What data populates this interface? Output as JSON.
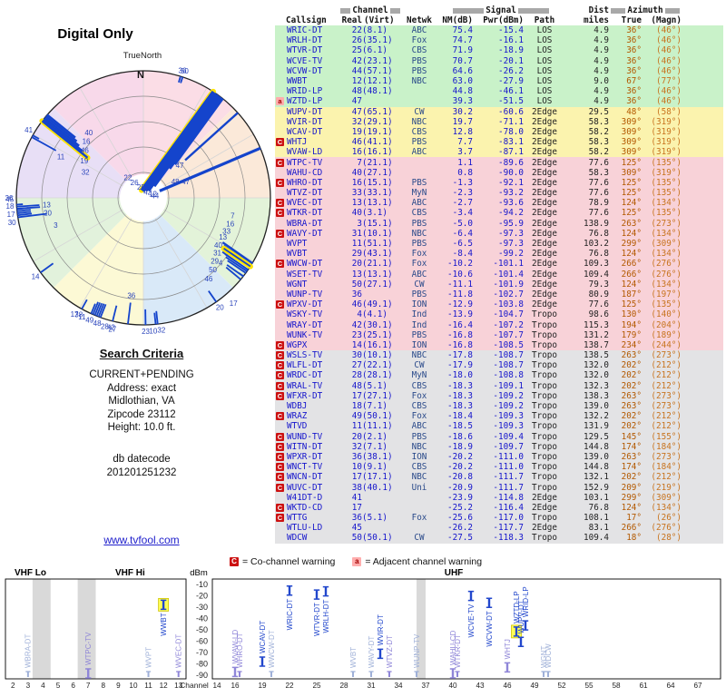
{
  "search": {
    "heading": "Search Criteria",
    "lines": [
      "CURRENT+PENDING",
      "Address: exact",
      "Midlothian, VA",
      "Zipcode 23112",
      "Height: 10.0 ft."
    ],
    "datecode_label": "db datecode",
    "datecode": "201201251232",
    "link": "www.tvfool.com"
  },
  "legend": {
    "c_symbol": "C",
    "c_label": "= Co-channel warning",
    "a_symbol": "a",
    "a_label": "= Adjacent channel warning"
  },
  "table": {
    "header": {
      "channel_group": "Channel",
      "signal_group": "Signal",
      "dist_line1": "Dist",
      "azimuth_group": "Azimuth",
      "callsign": "Callsign",
      "real": "Real",
      "virt": "(Virt)",
      "netwk": "Netwk",
      "nm": "NM(dB)",
      "pwr": "Pwr(dBm)",
      "path": "Path",
      "miles": "miles",
      "true": "True",
      "magn": "(Magn)"
    }
  },
  "chart_data": [
    {
      "type": "table",
      "columns": [
        "Callsign",
        "Real",
        "(Virt)",
        "Netwk",
        "NM(dB)",
        "Pwr(dBm)",
        "Path",
        "miles",
        "True",
        "(Magn)",
        "warning",
        "color_band"
      ],
      "rows": [
        [
          "WRIC-DT",
          "22",
          "(8.1)",
          "ABC",
          "75.4",
          "-15.4",
          "LOS",
          "4.9",
          "36°",
          "(46°)",
          "",
          "g"
        ],
        [
          "WRLH-DT",
          "26",
          "(35.1)",
          "Fox",
          "74.7",
          "-16.1",
          "LOS",
          "4.9",
          "36°",
          "(46°)",
          "",
          "g"
        ],
        [
          "WTVR-DT",
          "25",
          "(6.1)",
          "CBS",
          "71.9",
          "-18.9",
          "LOS",
          "4.9",
          "36°",
          "(46°)",
          "",
          "g"
        ],
        [
          "WCVE-TV",
          "42",
          "(23.1)",
          "PBS",
          "70.7",
          "-20.1",
          "LOS",
          "4.9",
          "36°",
          "(46°)",
          "",
          "g"
        ],
        [
          "WCVW-DT",
          "44",
          "(57.1)",
          "PBS",
          "64.6",
          "-26.2",
          "LOS",
          "4.9",
          "36°",
          "(46°)",
          "",
          "g"
        ],
        [
          "WWBT",
          "12",
          "(12.1)",
          "NBC",
          "63.0",
          "-27.9",
          "LOS",
          "9.0",
          "67°",
          "(77°)",
          "",
          "g"
        ],
        [
          "WRID-LP",
          "48",
          "(48.1)",
          "",
          "44.8",
          "-46.1",
          "LOS",
          "4.9",
          "36°",
          "(46°)",
          "",
          "g"
        ],
        [
          "WZTD-LP",
          "47",
          "",
          "",
          "39.3",
          "-51.5",
          "LOS",
          "4.9",
          "36°",
          "(46°)",
          "a",
          "g"
        ],
        [
          "WUPV-DT",
          "47",
          "(65.1)",
          "CW",
          "30.2",
          "-60.6",
          "2Edge",
          "29.5",
          "48°",
          "(58°)",
          "",
          "y"
        ],
        [
          "WVIR-DT",
          "32",
          "(29.1)",
          "NBC",
          "19.7",
          "-71.1",
          "2Edge",
          "58.3",
          "309°",
          "(319°)",
          "",
          "y"
        ],
        [
          "WCAV-DT",
          "19",
          "(19.1)",
          "CBS",
          "12.8",
          "-78.0",
          "2Edge",
          "58.2",
          "309°",
          "(319°)",
          "",
          "y"
        ],
        [
          "WHTJ",
          "46",
          "(41.1)",
          "PBS",
          "7.7",
          "-83.1",
          "2Edge",
          "58.3",
          "309°",
          "(319°)",
          "C",
          "y"
        ],
        [
          "WVAW-LD",
          "16",
          "(16.1)",
          "ABC",
          "3.7",
          "-87.1",
          "2Edge",
          "58.2",
          "309°",
          "(319°)",
          "",
          "y"
        ],
        [
          "WTPC-TV",
          "7",
          "(21.1)",
          "",
          "1.1",
          "-89.6",
          "2Edge",
          "77.6",
          "125°",
          "(135°)",
          "C",
          "p"
        ],
        [
          "WAHU-CD",
          "40",
          "(27.1)",
          "",
          "0.8",
          "-90.0",
          "2Edge",
          "58.3",
          "309°",
          "(319°)",
          "",
          "p"
        ],
        [
          "WHRO-DT",
          "16",
          "(15.1)",
          "PBS",
          "-1.3",
          "-92.1",
          "2Edge",
          "77.6",
          "125°",
          "(135°)",
          "C",
          "p"
        ],
        [
          "WTVZ-DT",
          "33",
          "(33.1)",
          "MyN",
          "-2.3",
          "-93.2",
          "2Edge",
          "77.6",
          "125°",
          "(135°)",
          "",
          "p"
        ],
        [
          "WVEC-DT",
          "13",
          "(13.1)",
          "ABC",
          "-2.7",
          "-93.6",
          "2Edge",
          "78.9",
          "124°",
          "(134°)",
          "C",
          "p"
        ],
        [
          "WTKR-DT",
          "40",
          "(3.1)",
          "CBS",
          "-3.4",
          "-94.2",
          "2Edge",
          "77.6",
          "125°",
          "(135°)",
          "C",
          "p"
        ],
        [
          "WBRA-DT",
          "3",
          "(15.1)",
          "PBS",
          "-5.0",
          "-95.9",
          "2Edge",
          "138.9",
          "263°",
          "(273°)",
          "",
          "p"
        ],
        [
          "WAVY-DT",
          "31",
          "(10.1)",
          "NBC",
          "-6.4",
          "-97.3",
          "2Edge",
          "76.8",
          "124°",
          "(134°)",
          "C",
          "p"
        ],
        [
          "WVPT",
          "11",
          "(51.1)",
          "PBS",
          "-6.5",
          "-97.3",
          "2Edge",
          "103.2",
          "299°",
          "(309°)",
          "",
          "p"
        ],
        [
          "WVBT",
          "29",
          "(43.1)",
          "Fox",
          "-8.4",
          "-99.2",
          "2Edge",
          "76.8",
          "124°",
          "(134°)",
          "",
          "p"
        ],
        [
          "WWCW-DT",
          "20",
          "(21.1)",
          "Fox",
          "-10.2",
          "-101.1",
          "2Edge",
          "109.3",
          "266°",
          "(276°)",
          "C",
          "p"
        ],
        [
          "WSET-TV",
          "13",
          "(13.1)",
          "ABC",
          "-10.6",
          "-101.4",
          "2Edge",
          "109.4",
          "266°",
          "(276°)",
          "",
          "p"
        ],
        [
          "WGNT",
          "50",
          "(27.1)",
          "CW",
          "-11.1",
          "-101.9",
          "2Edge",
          "79.3",
          "124°",
          "(134°)",
          "",
          "p"
        ],
        [
          "WUNP-TV",
          "36",
          "",
          "PBS",
          "-11.8",
          "-102.7",
          "2Edge",
          "80.9",
          "187°",
          "(197°)",
          "",
          "p"
        ],
        [
          "WPXV-DT",
          "46",
          "(49.1)",
          "ION",
          "-12.9",
          "-103.8",
          "2Edge",
          "77.6",
          "125°",
          "(135°)",
          "C",
          "p"
        ],
        [
          "WSKY-TV",
          "4",
          "(4.1)",
          "Ind",
          "-13.9",
          "-104.7",
          "Tropo",
          "98.6",
          "130°",
          "(140°)",
          "",
          "p"
        ],
        [
          "WRAY-DT",
          "42",
          "(30.1)",
          "Ind",
          "-16.4",
          "-107.2",
          "Tropo",
          "115.3",
          "194°",
          "(204°)",
          "",
          "p"
        ],
        [
          "WUNK-TV",
          "23",
          "(25.1)",
          "PBS",
          "-16.8",
          "-107.7",
          "Tropo",
          "131.2",
          "179°",
          "(189°)",
          "",
          "p"
        ],
        [
          "WGPX",
          "14",
          "(16.1)",
          "ION",
          "-16.8",
          "-108.5",
          "Tropo",
          "138.7",
          "234°",
          "(244°)",
          "C",
          "p"
        ],
        [
          "WSLS-TV",
          "30",
          "(10.1)",
          "NBC",
          "-17.8",
          "-108.7",
          "Tropo",
          "138.5",
          "263°",
          "(273°)",
          "C",
          "e"
        ],
        [
          "WLFL-DT",
          "27",
          "(22.1)",
          "CW",
          "-17.9",
          "-108.7",
          "Tropo",
          "132.0",
          "202°",
          "(212°)",
          "C",
          "e"
        ],
        [
          "WRDC-DT",
          "28",
          "(28.1)",
          "MyN",
          "-18.0",
          "-108.8",
          "Tropo",
          "132.0",
          "202°",
          "(212°)",
          "C",
          "e"
        ],
        [
          "WRAL-TV",
          "48",
          "(5.1)",
          "CBS",
          "-18.3",
          "-109.1",
          "Tropo",
          "132.3",
          "202°",
          "(212°)",
          "C",
          "e"
        ],
        [
          "WFXR-DT",
          "17",
          "(27.1)",
          "Fox",
          "-18.3",
          "-109.2",
          "Tropo",
          "138.3",
          "263°",
          "(273°)",
          "C",
          "e"
        ],
        [
          "WDBJ",
          "18",
          "(7.1)",
          "CBS",
          "-18.3",
          "-109.2",
          "Tropo",
          "139.0",
          "263°",
          "(273°)",
          "",
          "e"
        ],
        [
          "WRAZ",
          "49",
          "(50.1)",
          "Fox",
          "-18.4",
          "-109.3",
          "Tropo",
          "132.2",
          "202°",
          "(212°)",
          "C",
          "e"
        ],
        [
          "WTVD",
          "11",
          "(11.1)",
          "ABC",
          "-18.5",
          "-109.3",
          "Tropo",
          "131.9",
          "202°",
          "(212°)",
          "",
          "e"
        ],
        [
          "WUND-TV",
          "20",
          "(2.1)",
          "PBS",
          "-18.6",
          "-109.4",
          "Tropo",
          "129.5",
          "145°",
          "(155°)",
          "C",
          "e"
        ],
        [
          "WITN-DT",
          "32",
          "(7.1)",
          "NBC",
          "-18.9",
          "-109.7",
          "Tropo",
          "144.8",
          "174°",
          "(184°)",
          "C",
          "e"
        ],
        [
          "WPXR-DT",
          "36",
          "(38.1)",
          "ION",
          "-20.2",
          "-111.0",
          "Tropo",
          "139.0",
          "263°",
          "(273°)",
          "C",
          "e"
        ],
        [
          "WNCT-TV",
          "10",
          "(9.1)",
          "CBS",
          "-20.2",
          "-111.0",
          "Tropo",
          "144.8",
          "174°",
          "(184°)",
          "C",
          "e"
        ],
        [
          "WNCN-DT",
          "17",
          "(17.1)",
          "NBC",
          "-20.8",
          "-111.7",
          "Tropo",
          "132.1",
          "202°",
          "(212°)",
          "C",
          "e"
        ],
        [
          "WUVC-DT",
          "38",
          "(40.1)",
          "Uni",
          "-20.9",
          "-111.7",
          "Tropo",
          "152.9",
          "209°",
          "(219°)",
          "C",
          "e"
        ],
        [
          "W41DT-D",
          "41",
          "",
          "",
          "-23.9",
          "-114.8",
          "2Edge",
          "103.1",
          "299°",
          "(309°)",
          "",
          "e"
        ],
        [
          "WKTD-CD",
          "17",
          "",
          "",
          "-25.2",
          "-116.4",
          "2Edge",
          "76.8",
          "124°",
          "(134°)",
          "C",
          "e"
        ],
        [
          "WTTG",
          "36",
          "(5.1)",
          "Fox",
          "-25.6",
          "-117.0",
          "Tropo",
          "108.1",
          "17°",
          "(26°)",
          "C",
          "e"
        ],
        [
          "WTLU-LD",
          "45",
          "",
          "",
          "-26.2",
          "-117.7",
          "2Edge",
          "83.1",
          "266°",
          "(276°)",
          "",
          "e"
        ],
        [
          "WDCW",
          "50",
          "(50.1)",
          "CW",
          "-27.5",
          "-118.3",
          "Tropo",
          "109.4",
          "18°",
          "(28°)",
          "",
          "e"
        ]
      ]
    },
    {
      "type": "scatter",
      "subtype": "polar-radar",
      "title": "Digital Only",
      "orientation_label": "TrueNorth",
      "north_label": "N",
      "angle_field": "azimuth_true_deg",
      "radius_field": "NM(dB)",
      "sectors": [
        {
          "from": 0,
          "to": 45,
          "color": "#fbdde6"
        },
        {
          "from": 45,
          "to": 90,
          "color": "#fbe9d9"
        },
        {
          "from": 90,
          "to": 135,
          "color": "#e3f3d9"
        },
        {
          "from": 135,
          "to": 180,
          "color": "#d9e9f8"
        },
        {
          "from": 180,
          "to": 225,
          "color": "#fcf9d5"
        },
        {
          "from": 225,
          "to": 270,
          "color": "#e2f2dc"
        },
        {
          "from": 270,
          "to": 315,
          "color": "#e8dff6"
        },
        {
          "from": 315,
          "to": 360,
          "color": "#f8d9ea"
        }
      ],
      "highlights": [
        "WRIC-DT",
        "WVIR-DT",
        "WVEC-DT"
      ]
    },
    {
      "type": "bar",
      "subtype": "signal-levels",
      "ylabel": "dBm",
      "xlabel": "Channel",
      "ylim": [
        -90,
        -10
      ],
      "band_labels": [
        {
          "label": "VHF Lo",
          "x": 16,
          "anchor": "start"
        },
        {
          "label": "VHF Hi",
          "x": 127,
          "anchor": "start"
        },
        {
          "label": "UHF",
          "x": 500,
          "anchor": "middle"
        }
      ],
      "y_ticks": [
        -10,
        -20,
        -30,
        -40,
        -50,
        -60,
        -70,
        -80,
        -90
      ],
      "left_ticks": [
        2,
        3,
        4,
        5,
        6,
        7,
        8,
        9,
        10,
        11,
        12,
        13
      ],
      "right_ticks": [
        14,
        16,
        19,
        22,
        25,
        28,
        31,
        34,
        37,
        40,
        43,
        46,
        49,
        52,
        55,
        58,
        61,
        64,
        67
      ],
      "shaded_bands": [
        {
          "from": 3.8,
          "to": 5.0
        },
        {
          "from": 6.8,
          "to": 8.0
        },
        {
          "from": 36.5,
          "to": 37.5
        }
      ],
      "gray_labels": [
        "WBRA-DT",
        "WVPT",
        "WWCW-DT",
        "WVBT",
        "WAVY-DT",
        "WUNP-TV",
        "WGNT",
        "WDCW"
      ],
      "highlights": [
        "WWBT",
        "WZTD-LP"
      ]
    }
  ]
}
